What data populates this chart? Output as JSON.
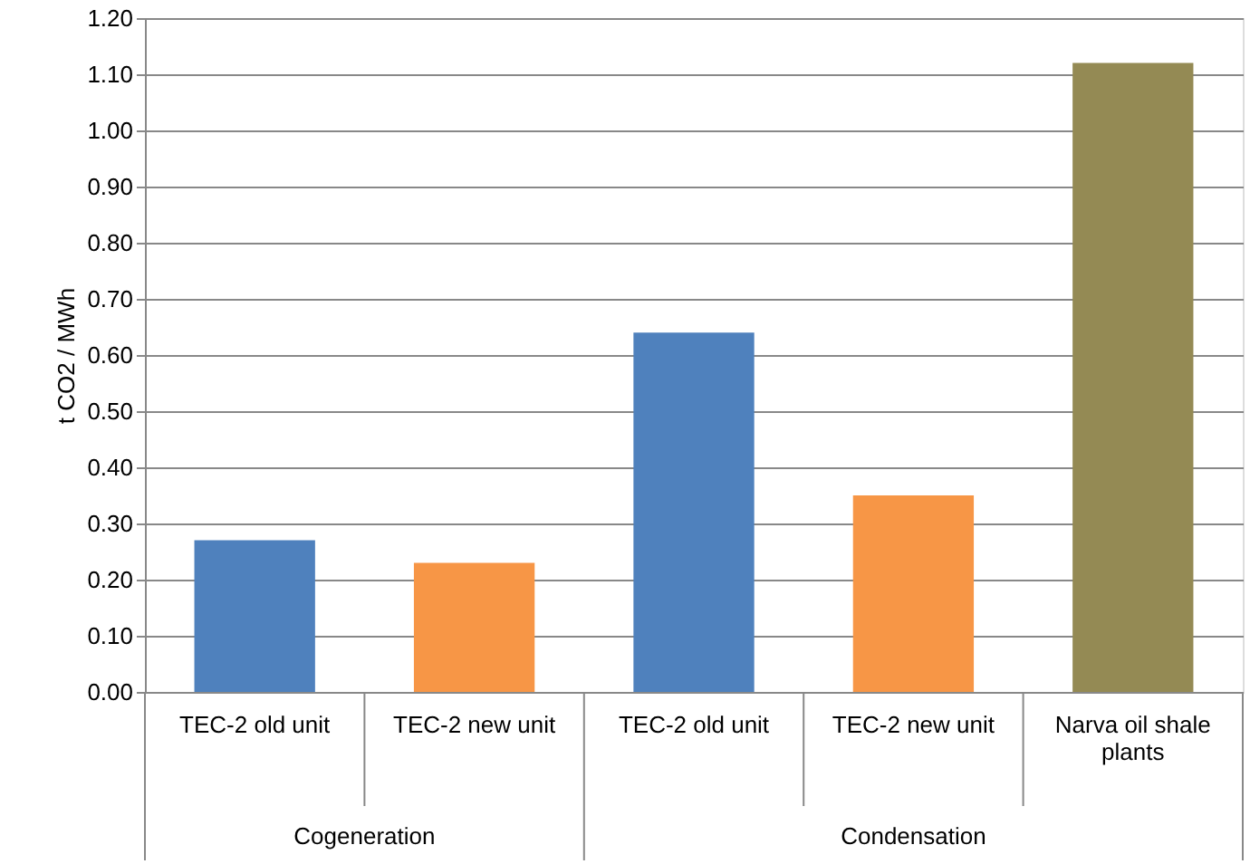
{
  "chart_data": {
    "type": "bar",
    "categories": [
      "TEC-2 old unit",
      "TEC-2 new unit",
      "TEC-2 old unit",
      "TEC-2 new unit",
      "Narva oil shale plants"
    ],
    "values": [
      0.27,
      0.23,
      0.64,
      0.35,
      1.12
    ],
    "colors": [
      "#4f81bd",
      "#f79646",
      "#4f81bd",
      "#f79646",
      "#948a54"
    ],
    "ylabel": "t CO2 / MWh",
    "ylim": [
      0,
      1.2
    ],
    "yticks": [
      {
        "value": 0,
        "label": "0.00"
      },
      {
        "value": 0.1,
        "label": "0.10"
      },
      {
        "value": 0.2,
        "label": "0.20"
      },
      {
        "value": 0.3,
        "label": "0.30"
      },
      {
        "value": 0.4,
        "label": "0.40"
      },
      {
        "value": 0.5,
        "label": "0.50"
      },
      {
        "value": 0.6,
        "label": "0.60"
      },
      {
        "value": 0.7,
        "label": "0.70"
      },
      {
        "value": 0.8,
        "label": "0.80"
      },
      {
        "value": 0.9,
        "label": "0.90"
      },
      {
        "value": 1.0,
        "label": "1.00"
      },
      {
        "value": 1.1,
        "label": "1.10"
      },
      {
        "value": 1.2,
        "label": "1.20"
      }
    ],
    "annotations": [
      "Cogeneration",
      "Condensation"
    ],
    "grid": "y"
  }
}
